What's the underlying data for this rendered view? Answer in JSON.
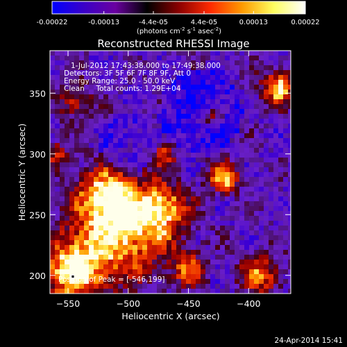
{
  "colorbar": {
    "ticks": [
      "-0.00022",
      "-0.00013",
      "-4.4e-05",
      "4.4e-05",
      "0.00013",
      "0.00022"
    ],
    "tick_values": [
      -0.00022,
      -0.00013,
      -4.4e-05,
      4.4e-05,
      0.00013,
      0.00022
    ],
    "range": [
      -0.00022,
      0.00022
    ],
    "unit_main": "(photons cm",
    "unit_exp1": "-2",
    "unit_mid": " s",
    "unit_exp2": "-1",
    "unit_tail": " asec",
    "unit_exp3": "-2",
    "unit_close": ")",
    "colors": [
      "#0000ff",
      "#3a00c8",
      "#6a00a0",
      "#000000",
      "#8a0000",
      "#ff2a00",
      "#ff9a00",
      "#ffff60",
      "#ffffff"
    ]
  },
  "chart_data": {
    "type": "heatmap",
    "title": "Reconstructed RHESSI Image",
    "xlabel": "Heliocentric X (arcsec)",
    "ylabel": "Heliocentric Y (arcsec)",
    "xlim": [
      -565,
      -365
    ],
    "ylim": [
      185,
      385
    ],
    "x_ticks": [
      {
        "value": -550,
        "label": "−550"
      },
      {
        "value": -500,
        "label": "−500"
      },
      {
        "value": -450,
        "label": "−450"
      },
      {
        "value": -400,
        "label": "−400"
      }
    ],
    "y_ticks": [
      {
        "value": 200,
        "label": "200"
      },
      {
        "value": 250,
        "label": "250"
      },
      {
        "value": 300,
        "label": "300"
      },
      {
        "value": 350,
        "label": "350"
      }
    ],
    "annotations": [
      "1-Jul-2012 17:43:38.000 to 17:49:38.000",
      "Detectors: 3F 5F 6F 7F 8F 9F, Att 0",
      "Energy Range: 25.0 - 50.0 keV",
      "Clean     Total counts: 1.29E+04"
    ],
    "peak_label": "Position of Peak = [-546,199]",
    "peak_position": [
      -546,
      199
    ],
    "grid": false
  },
  "footer": {
    "timestamp": "24-Apr-2014 15:41"
  }
}
